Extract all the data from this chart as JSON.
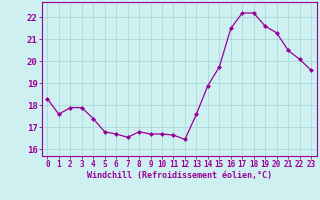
{
  "hours": [
    0,
    1,
    2,
    3,
    4,
    5,
    6,
    7,
    8,
    9,
    10,
    11,
    12,
    13,
    14,
    15,
    16,
    17,
    18,
    19,
    20,
    21,
    22,
    23
  ],
  "windchill": [
    18.3,
    17.6,
    17.9,
    17.9,
    17.4,
    16.8,
    16.7,
    16.55,
    16.8,
    16.7,
    16.7,
    16.65,
    16.45,
    17.6,
    18.9,
    19.75,
    21.5,
    22.2,
    22.2,
    21.6,
    21.3,
    20.5,
    20.1,
    19.6
  ],
  "line_color": "#990099",
  "marker": "D",
  "marker_size": 2,
  "bg_color": "#cff0f0",
  "grid_color": "#aadddd",
  "xlabel": "Windchill (Refroidissement éolien,°C)",
  "xlabel_color": "#990099",
  "ylabel_ticks": [
    16,
    17,
    18,
    19,
    20,
    21,
    22
  ],
  "ylim": [
    15.7,
    22.7
  ],
  "xlim": [
    -0.5,
    23.5
  ],
  "xtick_labels": [
    "0",
    "1",
    "2",
    "3",
    "4",
    "5",
    "6",
    "7",
    "8",
    "9",
    "10",
    "11",
    "12",
    "13",
    "14",
    "15",
    "16",
    "17",
    "18",
    "19",
    "20",
    "21",
    "22",
    "23"
  ],
  "tick_color": "#990099",
  "spine_color": "#990099",
  "tick_fontsize": 5.5,
  "ytick_fontsize": 6.5,
  "xlabel_fontsize": 6.0
}
